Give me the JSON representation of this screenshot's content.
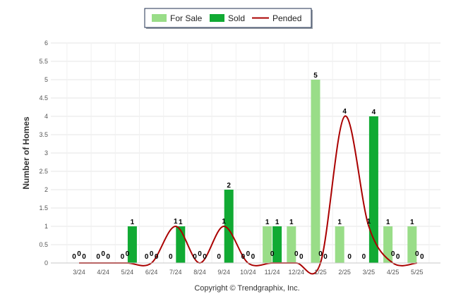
{
  "chart_data": {
    "type": "bar",
    "categories": [
      "3/24",
      "4/24",
      "5/24",
      "6/24",
      "7/24",
      "8/24",
      "9/24",
      "10/24",
      "11/24",
      "12/24",
      "1/25",
      "2/25",
      "3/25",
      "4/25",
      "5/25"
    ],
    "series": [
      {
        "name": "For Sale",
        "type": "bar",
        "color": "#99dd88",
        "values": [
          0,
          0,
          0,
          0,
          0,
          0,
          0,
          0,
          1,
          1,
          5,
          1,
          0,
          1,
          1
        ]
      },
      {
        "name": "Sold",
        "type": "bar",
        "color": "#11aa33",
        "values": [
          0,
          0,
          1,
          0,
          1,
          0,
          2,
          0,
          1,
          0,
          0,
          0,
          4,
          0,
          0
        ]
      },
      {
        "name": "Pended",
        "type": "line",
        "color": "#aa0000",
        "values": [
          0,
          0,
          0,
          0,
          1,
          0,
          1,
          0,
          0,
          0,
          0,
          4,
          1,
          0,
          0
        ]
      }
    ],
    "xlabel": "",
    "ylabel": "Number of Homes",
    "ylim": [
      0,
      6
    ],
    "yticks": [
      "0",
      "0.5",
      "1",
      "1.5",
      "2",
      "2.5",
      "3",
      "3.5",
      "4",
      "4.5",
      "5",
      "5.5",
      "6"
    ],
    "grid": true,
    "legend": "top-center"
  },
  "credit": "Copyright © Trendgraphix, Inc."
}
